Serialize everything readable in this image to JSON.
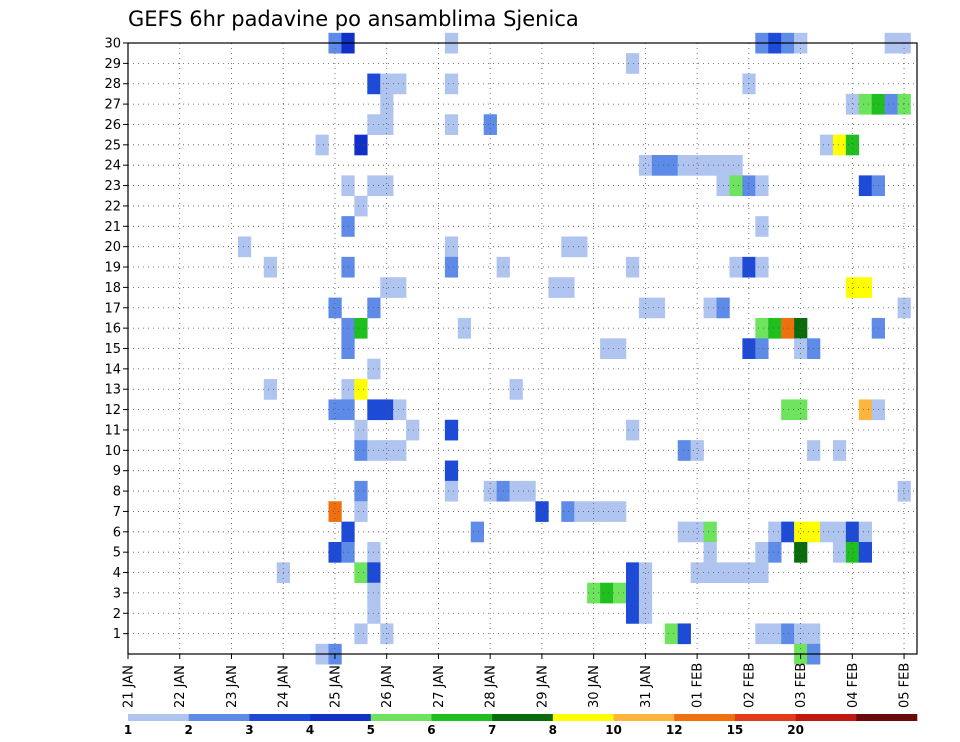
{
  "chart_data": {
    "type": "heatmap",
    "title": "GEFS 6hr padavine po ansamblima Sjenica",
    "xlabel": "",
    "ylabel": "",
    "y_ticks": [
      "1",
      "2",
      "3",
      "4",
      "5",
      "6",
      "7",
      "8",
      "9",
      "10",
      "11",
      "12",
      "13",
      "14",
      "15",
      "16",
      "17",
      "18",
      "19",
      "20",
      "21",
      "22",
      "23",
      "24",
      "25",
      "26",
      "27",
      "28",
      "29",
      "30"
    ],
    "ylim": [
      0,
      30
    ],
    "x_steps_total": 61,
    "x_steps_per_day": 4,
    "x_ticks": [
      "21 JAN",
      "22 JAN",
      "23 JAN",
      "24 JAN",
      "25 JAN",
      "26 JAN",
      "27 JAN",
      "28 JAN",
      "29 JAN",
      "30 JAN",
      "31 JAN",
      "01 FEB",
      "02 FEB",
      "03 FEB",
      "04 FEB",
      "05 FEB"
    ],
    "grid": "dotted",
    "legend": {
      "placement": "bottom",
      "labels": [
        "1",
        "2",
        "3",
        "4",
        "5",
        "6",
        "7",
        "8",
        "10",
        "12",
        "15",
        "20"
      ],
      "colors": [
        "#b0c4f0",
        "#5e8ae8",
        "#1d4bd8",
        "#1030c8",
        "#6ee35e",
        "#1fbf1f",
        "#0a6b0a",
        "#ffff00",
        "#ffb43c",
        "#f07010",
        "#e03c1c",
        "#c01a10",
        "#6b0a0a"
      ]
    },
    "units": "mm per 6hr",
    "cells": [
      {
        "m": 30,
        "t": 16,
        "v": 2
      },
      {
        "m": 30,
        "t": 17,
        "v": 4
      },
      {
        "m": 30,
        "t": 25,
        "v": 1
      },
      {
        "m": 30,
        "t": 49,
        "v": 2
      },
      {
        "m": 30,
        "t": 50,
        "v": 3
      },
      {
        "m": 30,
        "t": 51,
        "v": 2
      },
      {
        "m": 30,
        "t": 52,
        "v": 1
      },
      {
        "m": 30,
        "t": 59,
        "v": 1
      },
      {
        "m": 30,
        "t": 60,
        "v": 1
      },
      {
        "m": 29,
        "t": 39,
        "v": 1
      },
      {
        "m": 28,
        "t": 19,
        "v": 3
      },
      {
        "m": 28,
        "t": 20,
        "v": 1
      },
      {
        "m": 28,
        "t": 21,
        "v": 1
      },
      {
        "m": 28,
        "t": 25,
        "v": 1
      },
      {
        "m": 28,
        "t": 48,
        "v": 1
      },
      {
        "m": 27,
        "t": 20,
        "v": 1
      },
      {
        "m": 27,
        "t": 56,
        "v": 1
      },
      {
        "m": 27,
        "t": 57,
        "v": 5
      },
      {
        "m": 27,
        "t": 58,
        "v": 6
      },
      {
        "m": 27,
        "t": 59,
        "v": 2
      },
      {
        "m": 27,
        "t": 60,
        "v": 5
      },
      {
        "m": 26,
        "t": 19,
        "v": 1
      },
      {
        "m": 26,
        "t": 20,
        "v": 1
      },
      {
        "m": 26,
        "t": 25,
        "v": 1
      },
      {
        "m": 26,
        "t": 28,
        "v": 2
      },
      {
        "m": 25,
        "t": 15,
        "v": 1
      },
      {
        "m": 25,
        "t": 18,
        "v": 4
      },
      {
        "m": 25,
        "t": 54,
        "v": 1
      },
      {
        "m": 25,
        "t": 55,
        "v": 8
      },
      {
        "m": 25,
        "t": 56,
        "v": 6
      },
      {
        "m": 24,
        "t": 40,
        "v": 1
      },
      {
        "m": 24,
        "t": 41,
        "v": 2
      },
      {
        "m": 24,
        "t": 42,
        "v": 2
      },
      {
        "m": 24,
        "t": 43,
        "v": 1
      },
      {
        "m": 24,
        "t": 44,
        "v": 1
      },
      {
        "m": 24,
        "t": 45,
        "v": 1
      },
      {
        "m": 24,
        "t": 46,
        "v": 1
      },
      {
        "m": 24,
        "t": 47,
        "v": 1
      },
      {
        "m": 23,
        "t": 17,
        "v": 1
      },
      {
        "m": 23,
        "t": 19,
        "v": 1
      },
      {
        "m": 23,
        "t": 20,
        "v": 1
      },
      {
        "m": 23,
        "t": 46,
        "v": 1
      },
      {
        "m": 23,
        "t": 47,
        "v": 5
      },
      {
        "m": 23,
        "t": 48,
        "v": 2
      },
      {
        "m": 23,
        "t": 49,
        "v": 1
      },
      {
        "m": 23,
        "t": 57,
        "v": 3
      },
      {
        "m": 23,
        "t": 58,
        "v": 2
      },
      {
        "m": 22,
        "t": 18,
        "v": 1
      },
      {
        "m": 21,
        "t": 17,
        "v": 2
      },
      {
        "m": 21,
        "t": 49,
        "v": 1
      },
      {
        "m": 20,
        "t": 9,
        "v": 1
      },
      {
        "m": 20,
        "t": 25,
        "v": 1
      },
      {
        "m": 20,
        "t": 34,
        "v": 1
      },
      {
        "m": 20,
        "t": 35,
        "v": 1
      },
      {
        "m": 19,
        "t": 11,
        "v": 1
      },
      {
        "m": 19,
        "t": 17,
        "v": 2
      },
      {
        "m": 19,
        "t": 25,
        "v": 2
      },
      {
        "m": 19,
        "t": 29,
        "v": 1
      },
      {
        "m": 19,
        "t": 39,
        "v": 1
      },
      {
        "m": 19,
        "t": 47,
        "v": 1
      },
      {
        "m": 19,
        "t": 48,
        "v": 3
      },
      {
        "m": 19,
        "t": 49,
        "v": 1
      },
      {
        "m": 18,
        "t": 20,
        "v": 1
      },
      {
        "m": 18,
        "t": 21,
        "v": 1
      },
      {
        "m": 18,
        "t": 33,
        "v": 1
      },
      {
        "m": 18,
        "t": 34,
        "v": 1
      },
      {
        "m": 18,
        "t": 56,
        "v": 8
      },
      {
        "m": 18,
        "t": 57,
        "v": 8
      },
      {
        "m": 17,
        "t": 16,
        "v": 2
      },
      {
        "m": 17,
        "t": 19,
        "v": 2
      },
      {
        "m": 17,
        "t": 40,
        "v": 1
      },
      {
        "m": 17,
        "t": 41,
        "v": 1
      },
      {
        "m": 17,
        "t": 45,
        "v": 1
      },
      {
        "m": 17,
        "t": 46,
        "v": 2
      },
      {
        "m": 17,
        "t": 60,
        "v": 1
      },
      {
        "m": 16,
        "t": 17,
        "v": 2
      },
      {
        "m": 16,
        "t": 18,
        "v": 6
      },
      {
        "m": 16,
        "t": 26,
        "v": 1
      },
      {
        "m": 16,
        "t": 49,
        "v": 5
      },
      {
        "m": 16,
        "t": 50,
        "v": 6
      },
      {
        "m": 16,
        "t": 51,
        "v": 10
      },
      {
        "m": 16,
        "t": 52,
        "v": 7
      },
      {
        "m": 16,
        "t": 58,
        "v": 2
      },
      {
        "m": 15,
        "t": 17,
        "v": 2
      },
      {
        "m": 15,
        "t": 37,
        "v": 1
      },
      {
        "m": 15,
        "t": 38,
        "v": 1
      },
      {
        "m": 15,
        "t": 48,
        "v": 3
      },
      {
        "m": 15,
        "t": 49,
        "v": 2
      },
      {
        "m": 15,
        "t": 52,
        "v": 1
      },
      {
        "m": 15,
        "t": 53,
        "v": 2
      },
      {
        "m": 14,
        "t": 19,
        "v": 1
      },
      {
        "m": 13,
        "t": 11,
        "v": 1
      },
      {
        "m": 13,
        "t": 17,
        "v": 1
      },
      {
        "m": 13,
        "t": 18,
        "v": 8
      },
      {
        "m": 13,
        "t": 30,
        "v": 1
      },
      {
        "m": 12,
        "t": 16,
        "v": 2
      },
      {
        "m": 12,
        "t": 17,
        "v": 2
      },
      {
        "m": 12,
        "t": 19,
        "v": 3
      },
      {
        "m": 12,
        "t": 20,
        "v": 3
      },
      {
        "m": 12,
        "t": 21,
        "v": 1
      },
      {
        "m": 12,
        "t": 51,
        "v": 5
      },
      {
        "m": 12,
        "t": 52,
        "v": 5
      },
      {
        "m": 12,
        "t": 57,
        "v": 9
      },
      {
        "m": 12,
        "t": 58,
        "v": 1
      },
      {
        "m": 11,
        "t": 18,
        "v": 1
      },
      {
        "m": 11,
        "t": 22,
        "v": 1
      },
      {
        "m": 11,
        "t": 25,
        "v": 3
      },
      {
        "m": 11,
        "t": 39,
        "v": 1
      },
      {
        "m": 10,
        "t": 18,
        "v": 2
      },
      {
        "m": 10,
        "t": 19,
        "v": 1
      },
      {
        "m": 10,
        "t": 20,
        "v": 1
      },
      {
        "m": 10,
        "t": 21,
        "v": 1
      },
      {
        "m": 10,
        "t": 43,
        "v": 2
      },
      {
        "m": 10,
        "t": 44,
        "v": 1
      },
      {
        "m": 10,
        "t": 53,
        "v": 1
      },
      {
        "m": 10,
        "t": 55,
        "v": 1
      },
      {
        "m": 9,
        "t": 25,
        "v": 3
      },
      {
        "m": 8,
        "t": 18,
        "v": 2
      },
      {
        "m": 8,
        "t": 25,
        "v": 1
      },
      {
        "m": 8,
        "t": 28,
        "v": 1
      },
      {
        "m": 8,
        "t": 29,
        "v": 2
      },
      {
        "m": 8,
        "t": 30,
        "v": 1
      },
      {
        "m": 8,
        "t": 31,
        "v": 1
      },
      {
        "m": 8,
        "t": 60,
        "v": 1
      },
      {
        "m": 7,
        "t": 16,
        "v": 10
      },
      {
        "m": 7,
        "t": 18,
        "v": 1
      },
      {
        "m": 7,
        "t": 32,
        "v": 3
      },
      {
        "m": 7,
        "t": 34,
        "v": 2
      },
      {
        "m": 7,
        "t": 35,
        "v": 1
      },
      {
        "m": 7,
        "t": 36,
        "v": 1
      },
      {
        "m": 7,
        "t": 37,
        "v": 1
      },
      {
        "m": 7,
        "t": 38,
        "v": 1
      },
      {
        "m": 6,
        "t": 17,
        "v": 3
      },
      {
        "m": 6,
        "t": 27,
        "v": 2
      },
      {
        "m": 6,
        "t": 43,
        "v": 1
      },
      {
        "m": 6,
        "t": 44,
        "v": 1
      },
      {
        "m": 6,
        "t": 45,
        "v": 5
      },
      {
        "m": 6,
        "t": 50,
        "v": 1
      },
      {
        "m": 6,
        "t": 51,
        "v": 3
      },
      {
        "m": 6,
        "t": 52,
        "v": 8
      },
      {
        "m": 6,
        "t": 53,
        "v": 8
      },
      {
        "m": 6,
        "t": 54,
        "v": 1
      },
      {
        "m": 6,
        "t": 55,
        "v": 1
      },
      {
        "m": 6,
        "t": 56,
        "v": 3
      },
      {
        "m": 6,
        "t": 57,
        "v": 1
      },
      {
        "m": 5,
        "t": 16,
        "v": 3
      },
      {
        "m": 5,
        "t": 17,
        "v": 2
      },
      {
        "m": 5,
        "t": 19,
        "v": 1
      },
      {
        "m": 5,
        "t": 45,
        "v": 1
      },
      {
        "m": 5,
        "t": 49,
        "v": 1
      },
      {
        "m": 5,
        "t": 50,
        "v": 2
      },
      {
        "m": 5,
        "t": 52,
        "v": 7
      },
      {
        "m": 5,
        "t": 55,
        "v": 1
      },
      {
        "m": 5,
        "t": 56,
        "v": 6
      },
      {
        "m": 5,
        "t": 57,
        "v": 3
      },
      {
        "m": 4,
        "t": 12,
        "v": 1
      },
      {
        "m": 4,
        "t": 18,
        "v": 5
      },
      {
        "m": 4,
        "t": 19,
        "v": 3
      },
      {
        "m": 4,
        "t": 39,
        "v": 3
      },
      {
        "m": 4,
        "t": 40,
        "v": 1
      },
      {
        "m": 4,
        "t": 44,
        "v": 1
      },
      {
        "m": 4,
        "t": 45,
        "v": 1
      },
      {
        "m": 4,
        "t": 46,
        "v": 1
      },
      {
        "m": 4,
        "t": 47,
        "v": 1
      },
      {
        "m": 4,
        "t": 48,
        "v": 1
      },
      {
        "m": 4,
        "t": 49,
        "v": 1
      },
      {
        "m": 3,
        "t": 19,
        "v": 1
      },
      {
        "m": 3,
        "t": 36,
        "v": 5
      },
      {
        "m": 3,
        "t": 37,
        "v": 6
      },
      {
        "m": 3,
        "t": 38,
        "v": 5
      },
      {
        "m": 3,
        "t": 39,
        "v": 3
      },
      {
        "m": 3,
        "t": 40,
        "v": 1
      },
      {
        "m": 2,
        "t": 19,
        "v": 1
      },
      {
        "m": 2,
        "t": 39,
        "v": 3
      },
      {
        "m": 2,
        "t": 40,
        "v": 1
      },
      {
        "m": 1,
        "t": 18,
        "v": 1
      },
      {
        "m": 1,
        "t": 20,
        "v": 1
      },
      {
        "m": 1,
        "t": 42,
        "v": 5
      },
      {
        "m": 1,
        "t": 43,
        "v": 3
      },
      {
        "m": 1,
        "t": 49,
        "v": 1
      },
      {
        "m": 1,
        "t": 50,
        "v": 1
      },
      {
        "m": 1,
        "t": 51,
        "v": 2
      },
      {
        "m": 1,
        "t": 52,
        "v": 1
      },
      {
        "m": 1,
        "t": 53,
        "v": 1
      },
      {
        "m": 0,
        "t": 15,
        "v": 1
      },
      {
        "m": 0,
        "t": 16,
        "v": 2
      },
      {
        "m": 0,
        "t": 52,
        "v": 5
      },
      {
        "m": 0,
        "t": 53,
        "v": 2
      }
    ]
  }
}
